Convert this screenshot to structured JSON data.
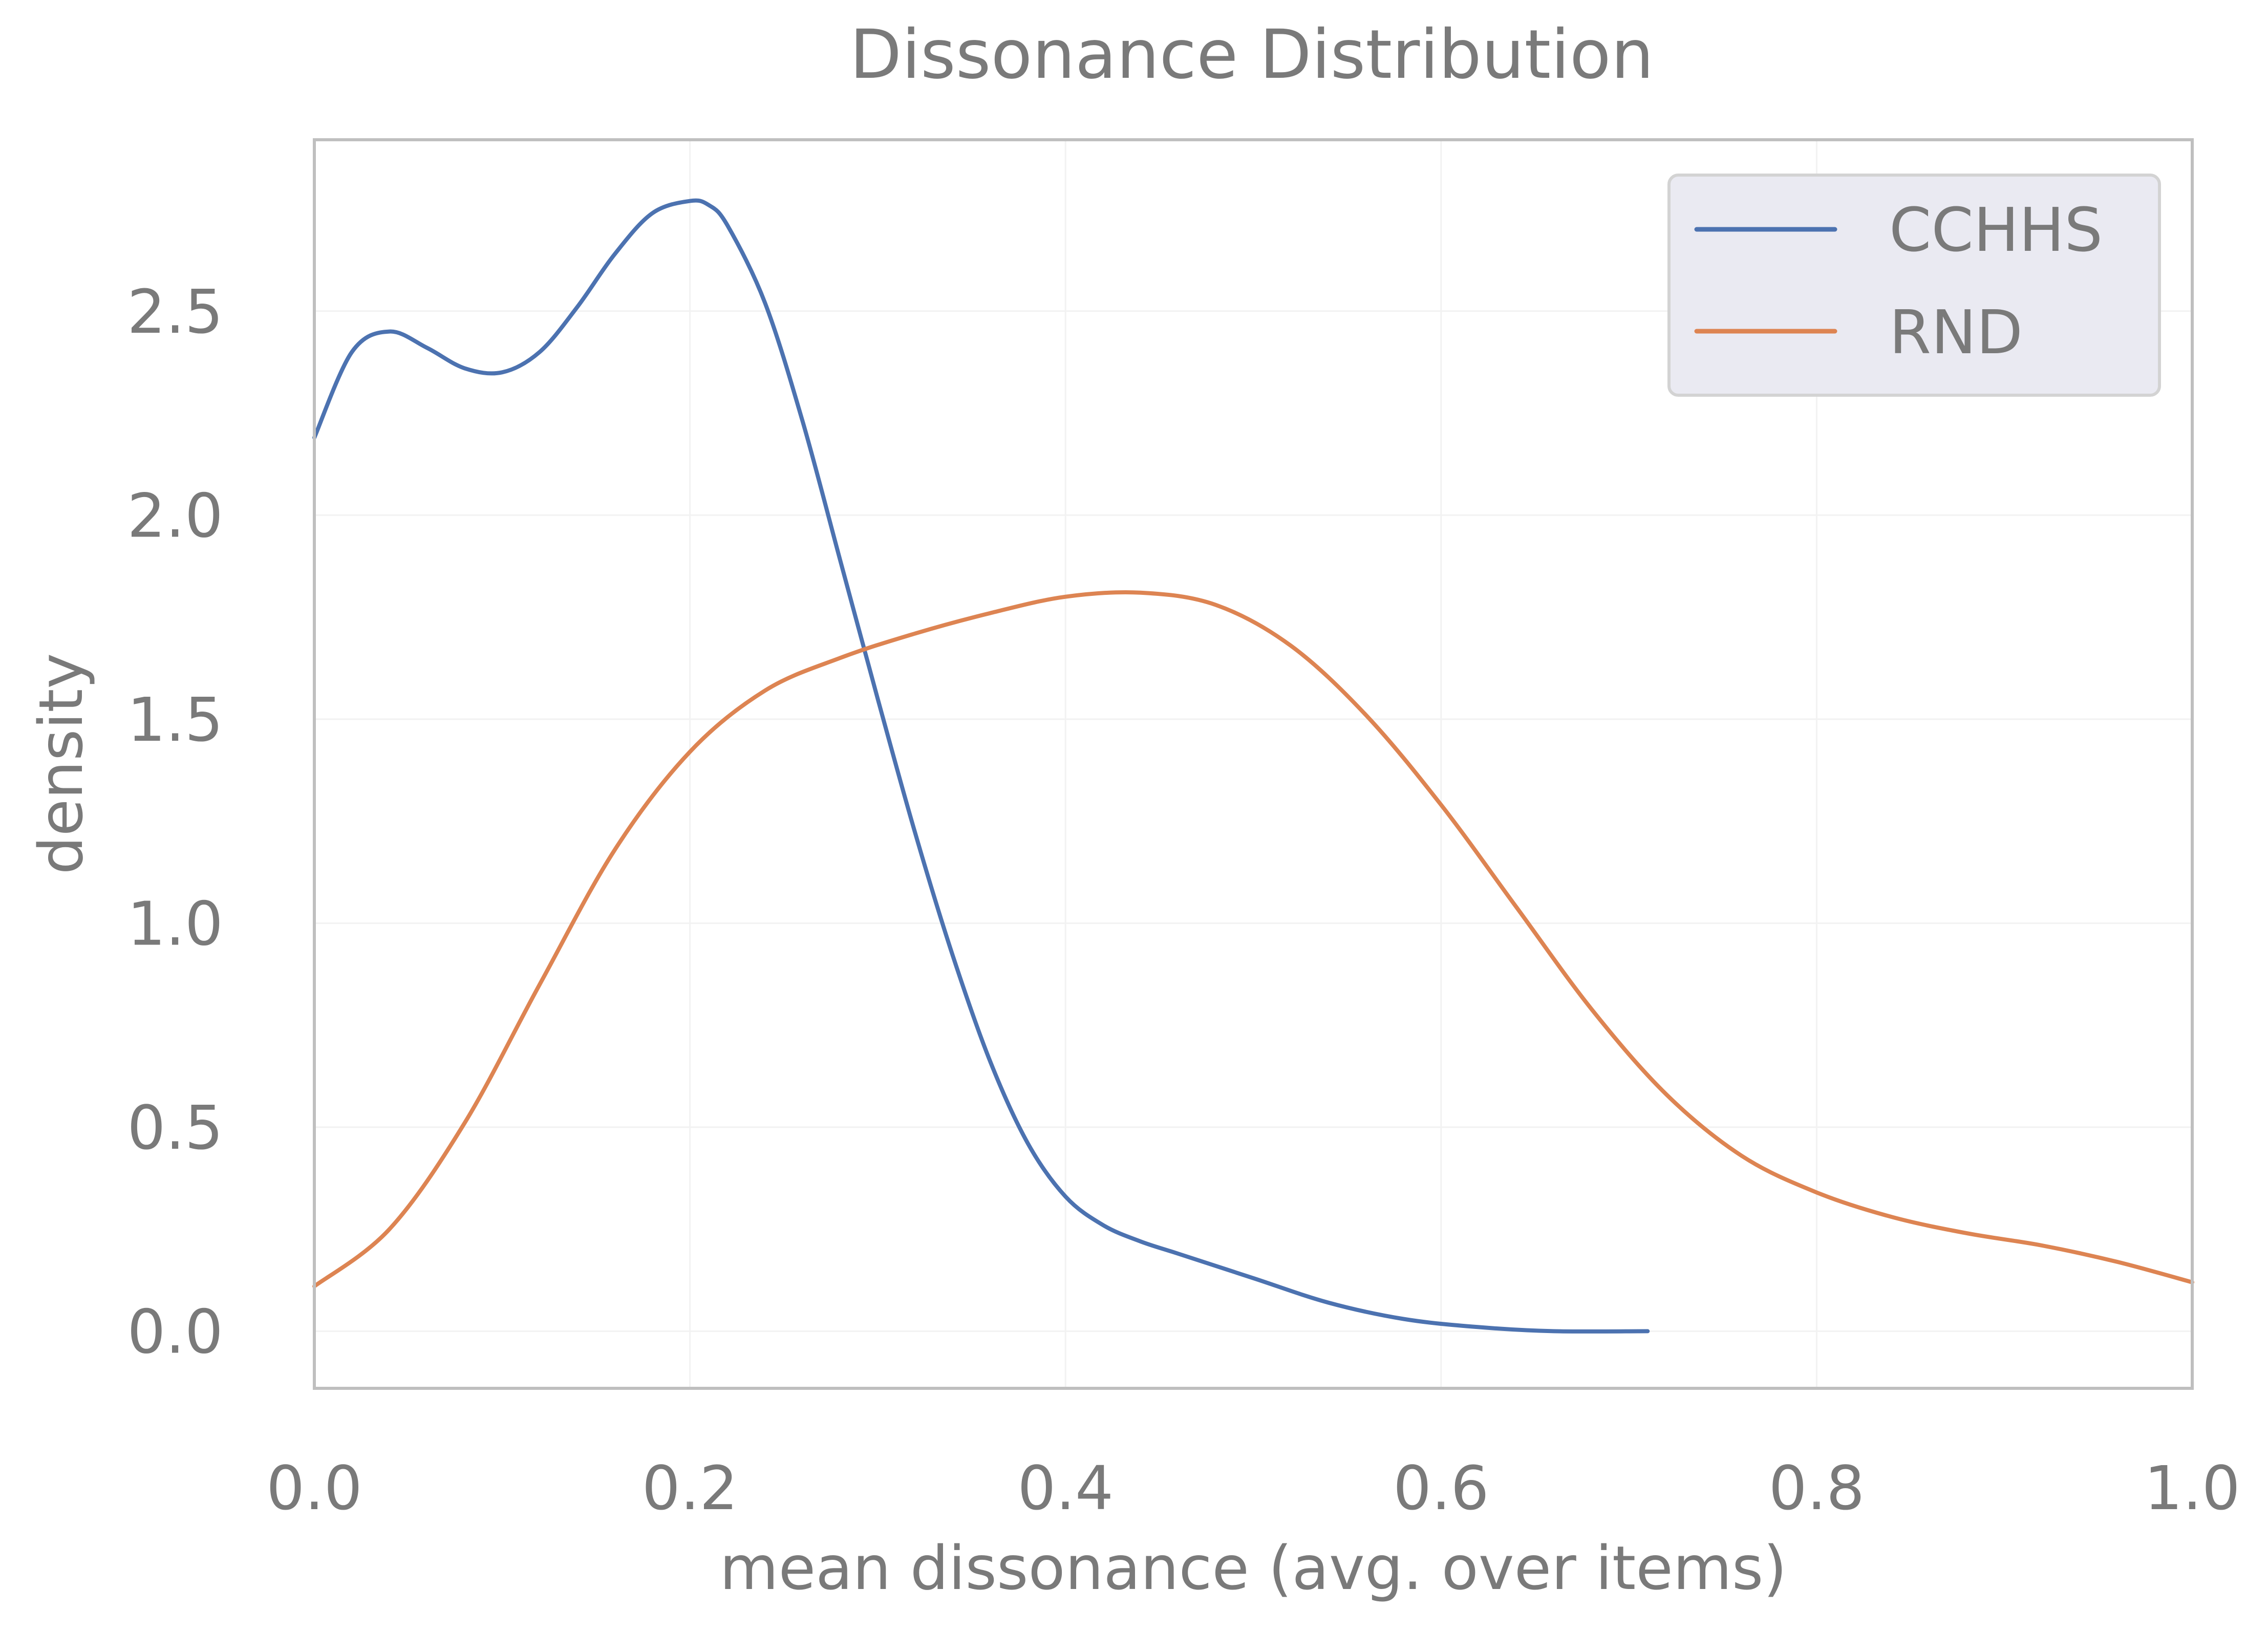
{
  "chart_data": {
    "type": "line",
    "title": "Dissonance Distribution",
    "xlabel": "mean dissonance (avg. over items)",
    "ylabel": "density",
    "xlim": [
      0.0,
      1.0
    ],
    "ylim": [
      -0.14,
      2.92
    ],
    "xticks": [
      0.0,
      0.2,
      0.4,
      0.6,
      0.8,
      1.0
    ],
    "xtick_labels": [
      "0.0",
      "0.2",
      "0.4",
      "0.6",
      "0.8",
      "1.0"
    ],
    "yticks": [
      0.0,
      0.5,
      1.0,
      1.5,
      2.0,
      2.5
    ],
    "ytick_labels": [
      "0.0",
      "0.5",
      "1.0",
      "1.5",
      "2.0",
      "2.5"
    ],
    "grid": true,
    "legend_position": "top-right",
    "series": [
      {
        "name": "CCHHS",
        "color": "#4c72b0",
        "x": [
          0.0,
          0.02,
          0.04,
          0.06,
          0.08,
          0.1,
          0.12,
          0.14,
          0.16,
          0.18,
          0.2,
          0.21,
          0.22,
          0.24,
          0.26,
          0.28,
          0.3,
          0.32,
          0.34,
          0.36,
          0.38,
          0.4,
          0.42,
          0.44,
          0.46,
          0.5,
          0.54,
          0.58,
          0.62,
          0.66,
          0.71
        ],
        "y": [
          2.19,
          2.4,
          2.45,
          2.41,
          2.36,
          2.35,
          2.4,
          2.51,
          2.64,
          2.74,
          2.77,
          2.76,
          2.71,
          2.52,
          2.23,
          1.89,
          1.55,
          1.22,
          0.92,
          0.66,
          0.46,
          0.33,
          0.26,
          0.22,
          0.19,
          0.13,
          0.07,
          0.03,
          0.01,
          0.0,
          0.0
        ]
      },
      {
        "name": "RND",
        "color": "#dd8452",
        "x": [
          0.0,
          0.04,
          0.08,
          0.12,
          0.16,
          0.2,
          0.24,
          0.28,
          0.32,
          0.36,
          0.4,
          0.44,
          0.48,
          0.52,
          0.56,
          0.6,
          0.64,
          0.68,
          0.72,
          0.76,
          0.8,
          0.84,
          0.88,
          0.92,
          0.96,
          1.0
        ],
        "y": [
          0.11,
          0.25,
          0.51,
          0.85,
          1.18,
          1.42,
          1.57,
          1.65,
          1.71,
          1.76,
          1.8,
          1.81,
          1.78,
          1.68,
          1.51,
          1.29,
          1.04,
          0.79,
          0.58,
          0.43,
          0.34,
          0.28,
          0.24,
          0.21,
          0.17,
          0.12
        ]
      }
    ]
  }
}
